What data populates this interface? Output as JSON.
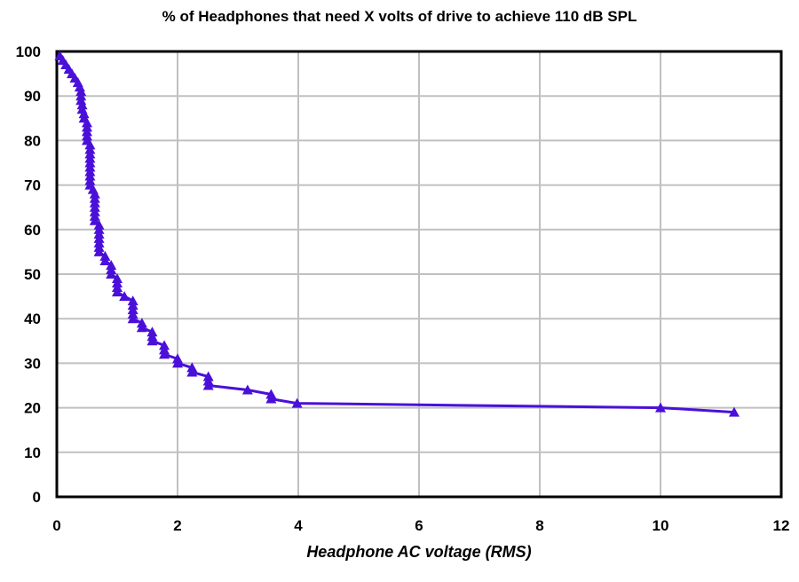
{
  "colors": {
    "series": "#4a10d9",
    "grid": "#c0c0c0",
    "frame": "#000000",
    "background": "#ffffff"
  },
  "chart_data": {
    "type": "line",
    "title": "% of Headphones that need X volts of drive to achieve 110 dB SPL",
    "xlabel": "Headphone AC voltage (RMS)",
    "ylabel": "",
    "xlim": [
      0,
      12
    ],
    "ylim": [
      0,
      100
    ],
    "xticks": [
      0,
      2,
      4,
      6,
      8,
      10,
      12
    ],
    "yticks": [
      0,
      10,
      20,
      30,
      40,
      50,
      60,
      70,
      80,
      90,
      100
    ],
    "grid": true,
    "legend": "none",
    "marker": "triangle",
    "series": [
      {
        "x": [
          0.05,
          0.1,
          0.15,
          0.2,
          0.25,
          0.3,
          0.35,
          0.38,
          0.4,
          0.4,
          0.4,
          0.42,
          0.42,
          0.45,
          0.45,
          0.5,
          0.5,
          0.5,
          0.5,
          0.5,
          0.55,
          0.55,
          0.55,
          0.55,
          0.55,
          0.55,
          0.55,
          0.55,
          0.55,
          0.55,
          0.6,
          0.63,
          0.63,
          0.63,
          0.63,
          0.63,
          0.63,
          0.63,
          0.7,
          0.7,
          0.7,
          0.7,
          0.7,
          0.7,
          0.7,
          0.8,
          0.8,
          0.9,
          0.9,
          0.9,
          1.0,
          1.0,
          1.0,
          1.0,
          1.12,
          1.26,
          1.26,
          1.26,
          1.26,
          1.26,
          1.41,
          1.41,
          1.58,
          1.58,
          1.58,
          1.78,
          1.78,
          1.78,
          2.0,
          2.0,
          2.24,
          2.24,
          2.51,
          2.51,
          2.51,
          3.16,
          3.55,
          3.55,
          3.98,
          10.0,
          11.22
        ],
        "y": [
          99,
          98,
          97,
          96,
          95,
          94,
          93,
          92,
          91,
          90,
          89,
          88,
          87,
          86,
          85,
          84,
          83,
          82,
          81,
          80,
          79,
          78,
          77,
          76,
          75,
          74,
          73,
          72,
          71,
          70,
          69,
          68,
          67,
          66,
          65,
          64,
          63,
          62,
          61,
          60,
          59,
          58,
          57,
          56,
          55,
          54,
          53,
          52,
          51,
          50,
          49,
          48,
          47,
          46,
          45,
          44,
          43,
          42,
          41,
          40,
          39,
          38,
          37,
          36,
          35,
          34,
          33,
          32,
          31,
          30,
          29,
          28,
          27,
          26,
          25,
          24,
          23,
          22,
          21,
          20,
          19
        ]
      }
    ]
  }
}
